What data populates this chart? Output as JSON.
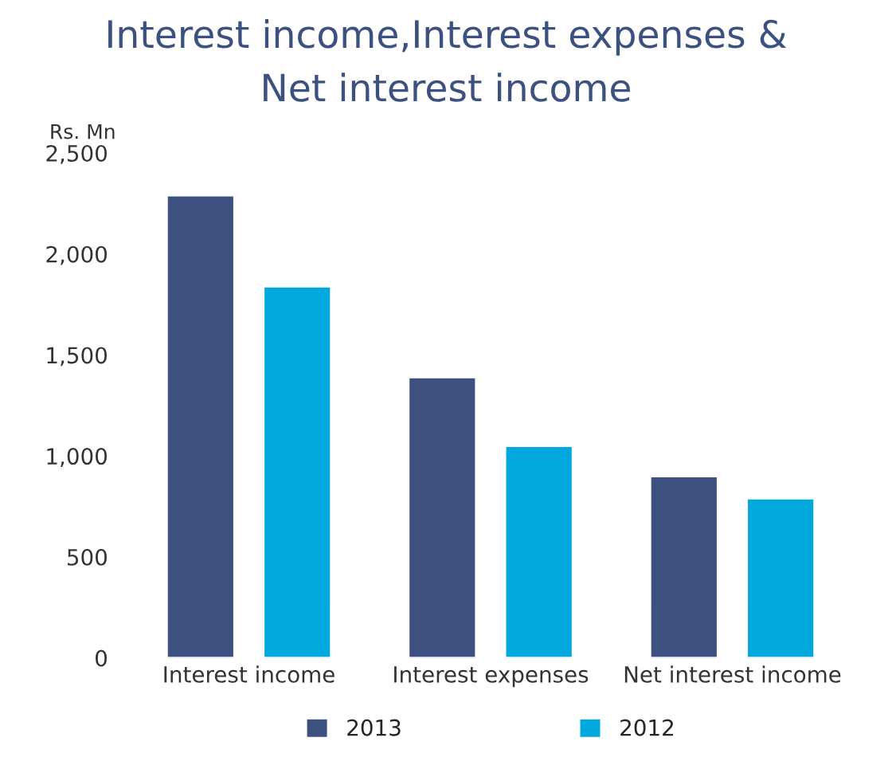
{
  "chart_data": {
    "type": "bar",
    "title": "Interest income,Interest expenses &\nNet interest income",
    "ylabel": "Rs. Mn",
    "categories": [
      "Interest income",
      "Interest expenses",
      "Net interest income"
    ],
    "series": [
      {
        "name": "2013",
        "color": "#3d5181",
        "values": [
          2290,
          1390,
          900
        ]
      },
      {
        "name": "2012",
        "color": "#00a8de",
        "values": [
          1840,
          1050,
          790
        ]
      }
    ],
    "ylim": [
      0,
      2500
    ],
    "yticks": [
      {
        "value": 0,
        "label": "0"
      },
      {
        "value": 500,
        "label": "500"
      },
      {
        "value": 1000,
        "label": "1,000"
      },
      {
        "value": 1500,
        "label": "1,500"
      },
      {
        "value": 2000,
        "label": "2,000"
      },
      {
        "value": 2500,
        "label": "2,500"
      }
    ],
    "grid": false,
    "legend": "bottom"
  }
}
